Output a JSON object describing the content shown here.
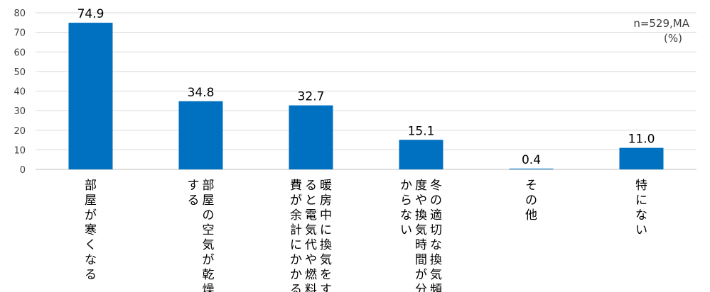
{
  "chart_data": {
    "type": "bar",
    "categories": [
      [
        "部屋が寒くなる"
      ],
      [
        "部屋の空気が乾燥",
        "する"
      ],
      [
        "暖房中に換気をす",
        "ると電気代や燃料",
        "費が余計にかかる"
      ],
      [
        "冬の適切な換気頻",
        "度や換気時間が分",
        "からない"
      ],
      [
        "その他"
      ],
      [
        "特にない"
      ]
    ],
    "values": [
      74.9,
      34.8,
      32.7,
      15.1,
      0.4,
      11.0
    ],
    "value_labels": [
      "74.9",
      "34.8",
      "32.7",
      "15.1",
      "0.4",
      "11.0"
    ],
    "ylim": [
      0,
      80
    ],
    "yticks": [
      0,
      10,
      20,
      30,
      40,
      50,
      60,
      70,
      80
    ],
    "grid": true,
    "bar_color": "#0070C0",
    "annotation": [
      "n=529,MA",
      "(%)"
    ]
  }
}
